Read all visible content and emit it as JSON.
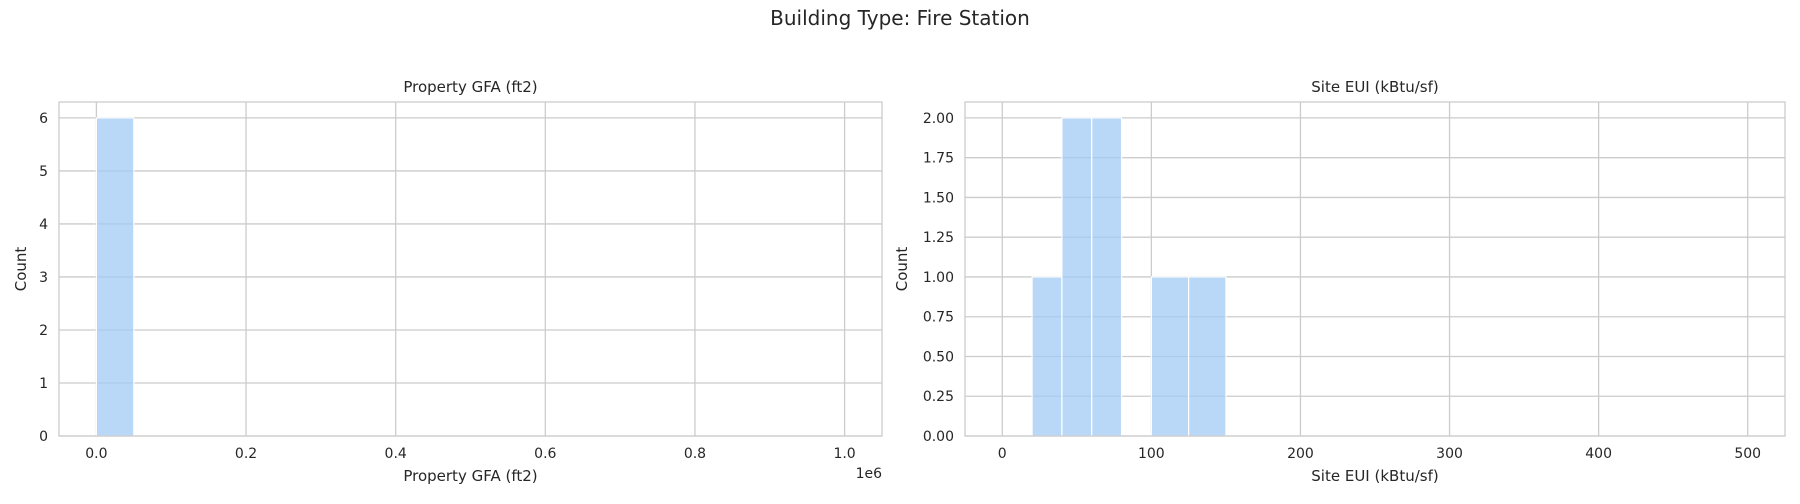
{
  "figure": {
    "suptitle": "Building Type: Fire Station"
  },
  "chart_data": [
    {
      "type": "bar",
      "title": "Property GFA (ft2)",
      "xlabel": "Property GFA (ft2)",
      "ylabel": "Count",
      "x_offset_label": "1e6",
      "xlim": [
        -0.05,
        1.05
      ],
      "ylim": [
        0,
        6.3
      ],
      "xticks": [
        0.0,
        0.2,
        0.4,
        0.6,
        0.8,
        1.0
      ],
      "xtick_labels": [
        "0.0",
        "0.2",
        "0.4",
        "0.6",
        "0.8",
        "1.0"
      ],
      "yticks": [
        0,
        1,
        2,
        3,
        4,
        5,
        6
      ],
      "ytick_labels": [
        "0",
        "1",
        "2",
        "3",
        "4",
        "5",
        "6"
      ],
      "bins": [
        {
          "x0": 0.0,
          "x1": 0.05,
          "count": 6
        }
      ],
      "grid": true,
      "color": "#a1c9f4"
    },
    {
      "type": "bar",
      "title": "Site EUI (kBtu/sf)",
      "xlabel": "Site EUI (kBtu/sf)",
      "ylabel": "Count",
      "xlim": [
        -25,
        525
      ],
      "ylim": [
        0,
        2.1
      ],
      "xticks": [
        0,
        100,
        200,
        300,
        400,
        500
      ],
      "xtick_labels": [
        "0",
        "100",
        "200",
        "300",
        "400",
        "500"
      ],
      "yticks": [
        0,
        0.25,
        0.5,
        0.75,
        1.0,
        1.25,
        1.5,
        1.75,
        2.0
      ],
      "ytick_labels": [
        "0.00",
        "0.25",
        "0.50",
        "0.75",
        "1.00",
        "1.25",
        "1.50",
        "1.75",
        "2.00"
      ],
      "bins": [
        {
          "x0": 20,
          "x1": 40,
          "count": 1
        },
        {
          "x0": 40,
          "x1": 60,
          "count": 2
        },
        {
          "x0": 60,
          "x1": 80,
          "count": 2
        },
        {
          "x0": 100,
          "x1": 125,
          "count": 1
        },
        {
          "x0": 125,
          "x1": 150,
          "count": 1
        }
      ],
      "grid": true,
      "color": "#a1c9f4"
    }
  ]
}
